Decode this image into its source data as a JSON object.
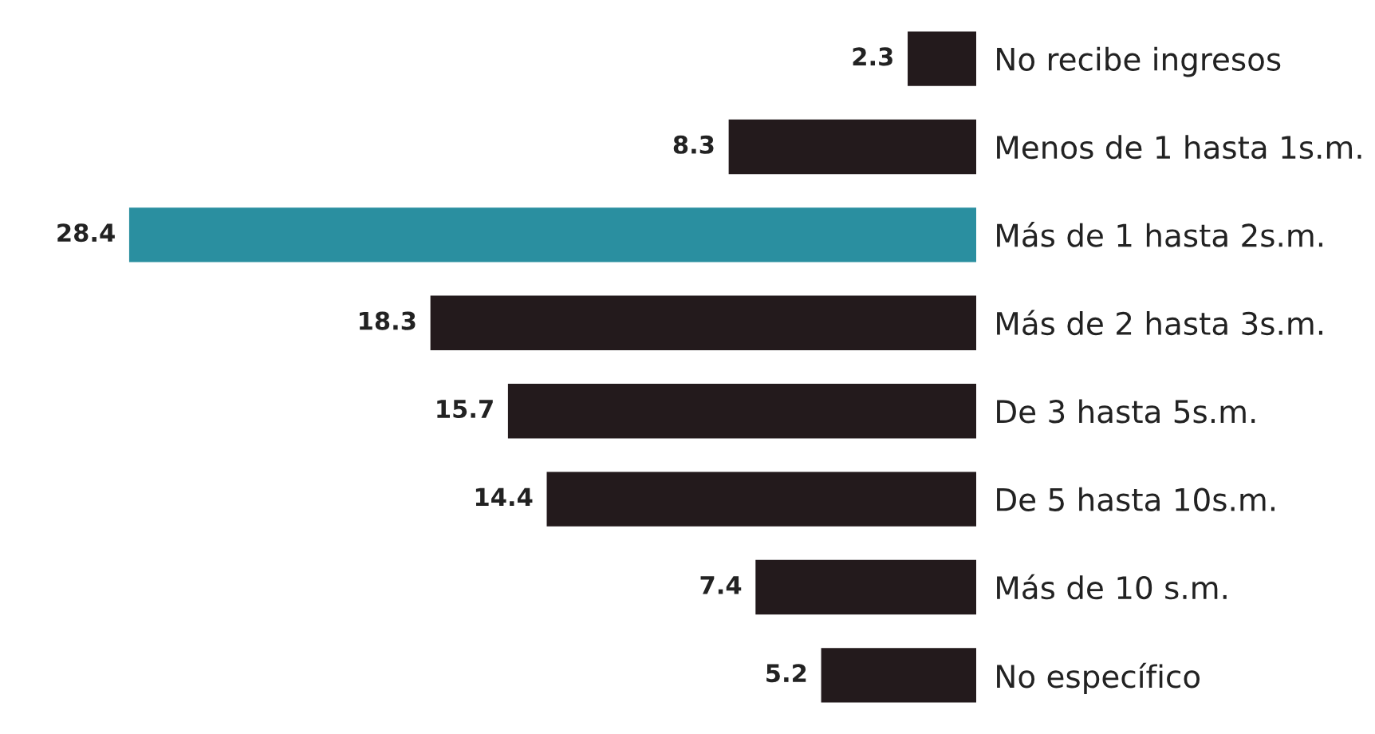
{
  "chart_data": {
    "type": "bar",
    "orientation": "horizontal",
    "data_labels": true,
    "categories": [
      "No recibe ingresos",
      "Menos de 1 hasta 1s.m.",
      "Más de 1 hasta 2s.m.",
      "Más de 2 hasta 3s.m.",
      "De 3 hasta 5s.m.",
      "De 5 hasta 10s.m.",
      "Más de 10 s.m.",
      "No específico"
    ],
    "colors": [
      "#231a1c",
      "#231a1c",
      "#2a8fa0",
      "#231a1c",
      "#231a1c",
      "#231a1c",
      "#231a1c",
      "#231a1c"
    ],
    "values": [
      2.3,
      8.3,
      28.4,
      18.3,
      15.7,
      14.4,
      7.4,
      5.2
    ]
  }
}
